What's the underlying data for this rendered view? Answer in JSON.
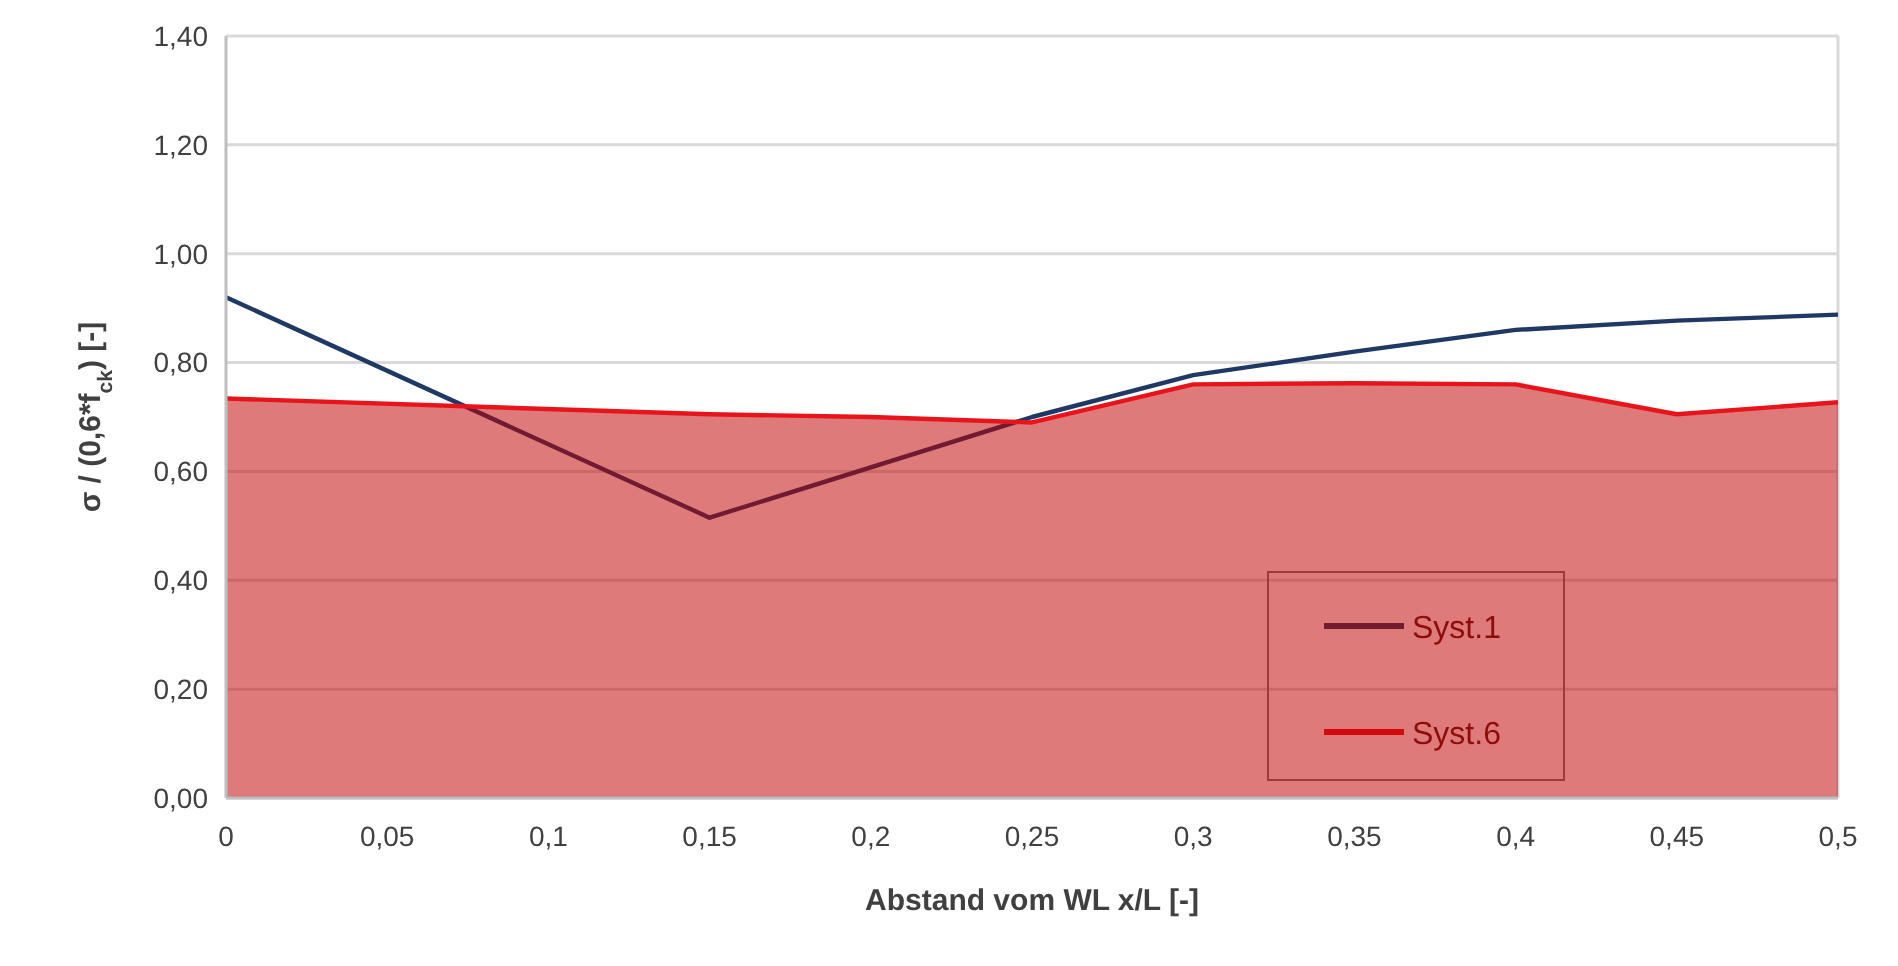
{
  "chart_data": {
    "type": "line",
    "xlabel": "Abstand vom WL x/L [-]",
    "ylabel": "σ / (0,6*f$_{ck}$) [-]",
    "xlim": [
      0,
      0.5
    ],
    "ylim": [
      0,
      1.4
    ],
    "xticks": [
      0,
      {
        "value": 0.05,
        "label": "0,05"
      },
      {
        "value": 0.1,
        "label": "0,1"
      },
      {
        "value": 0.15,
        "label": "0,15"
      },
      {
        "value": 0.2,
        "label": "0,2"
      },
      {
        "value": 0.25,
        "label": "0,25"
      },
      {
        "value": 0.3,
        "label": "0,3"
      },
      {
        "value": 0.35,
        "label": "0,35"
      },
      {
        "value": 0.4,
        "label": "0,4"
      },
      {
        "value": 0.45,
        "label": "0,45"
      },
      {
        "value": 0.5,
        "label": "0,5"
      }
    ],
    "yticks": [
      {
        "value": 0,
        "label": "0,00"
      },
      {
        "value": 0.2,
        "label": "0,20"
      },
      {
        "value": 0.4,
        "label": "0,40"
      },
      {
        "value": 0.6,
        "label": "0,60"
      },
      {
        "value": 0.8,
        "label": "0,80"
      },
      {
        "value": 1,
        "label": "1,00"
      },
      {
        "value": 1.2,
        "label": "1,20"
      },
      {
        "value": 1.4,
        "label": "1,40"
      }
    ],
    "grid": "y",
    "legend": "right",
    "marker": "none",
    "line_style": "solid",
    "series": [
      {
        "name": "Syst.1",
        "color": "#1f3864",
        "x": [
          0,
          0.15,
          0.25,
          0.3,
          0.35,
          0.4,
          0.45,
          0.5
        ],
        "values": [
          0.92,
          0.515,
          0.7,
          0.777,
          0.82,
          0.86,
          0.877,
          0.888
        ]
      },
      {
        "name": "Syst.6",
        "type": "area",
        "color": "#e8141c",
        "x": [
          0,
          0.15,
          0.2,
          0.25,
          0.3,
          0.35,
          0.4,
          0.45,
          0.5
        ],
        "values": [
          0.734,
          0.705,
          0.7,
          0.69,
          0.76,
          0.762,
          0.76,
          0.705,
          0.727
        ]
      }
    ]
  }
}
